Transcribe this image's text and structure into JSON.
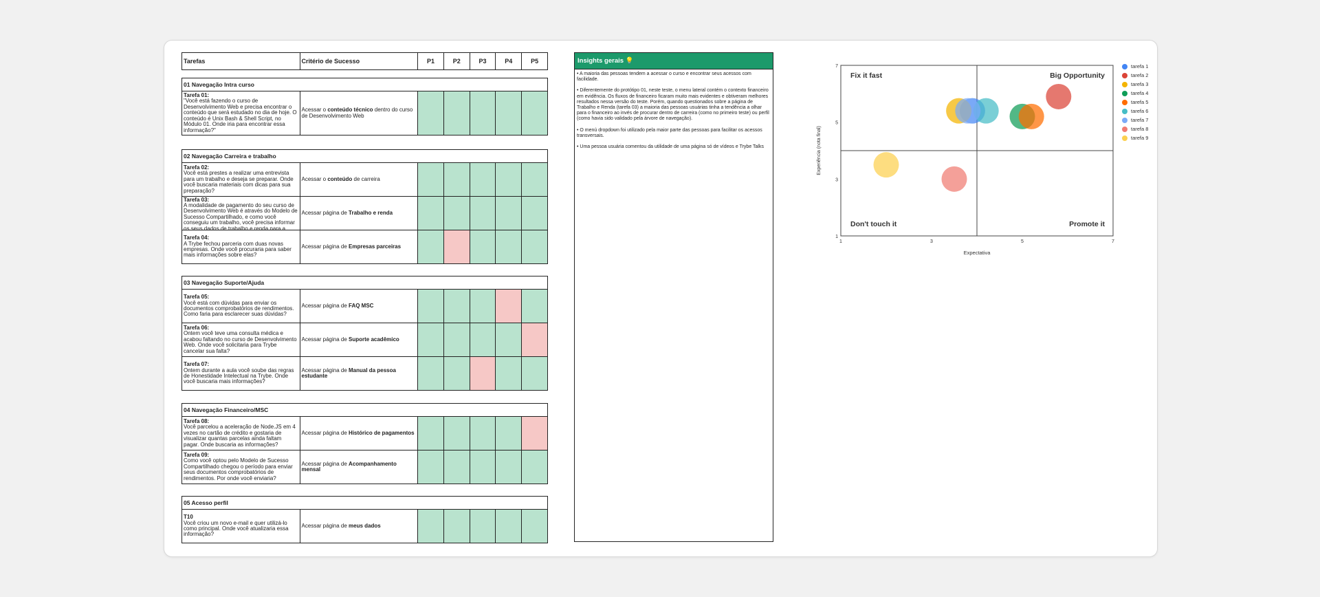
{
  "table": {
    "headers": [
      "Tarefas",
      "Critério de Sucesso",
      "P1",
      "P2",
      "P3",
      "P4",
      "P5"
    ],
    "sections": [
      {
        "title": "01 Navegação Intra curso",
        "rows": [
          {
            "task_title": "Tarefa 01:",
            "task_text": "\"Você está fazendo o curso de Desenvolvimento Web e precisa encontrar o conteúdo que será estudado no dia de hoje. O conteúdo é Unix Bash & Shell Script, no Módulo 01. Onde iria para encontrar essa informação?\"",
            "crit_pre": "Acessar o ",
            "crit_bold": "conteúdo técnico",
            "crit_post": " dentro do curso de Desenvolvimento Web",
            "results": [
              "success",
              "success",
              "success",
              "success",
              "success"
            ]
          }
        ]
      },
      {
        "title": "02 Navegação Carreira e trabalho",
        "rows": [
          {
            "task_title": "Tarefa 02:",
            "task_text": "Você está prestes a realizar uma entrevista para um trabalho e deseja se preparar. Onde você buscaria materiais com dicas para sua preparação?",
            "crit_pre": "Acessar o ",
            "crit_bold": "conteúdo",
            "crit_post": " de carreira",
            "results": [
              "success",
              "success",
              "success",
              "success",
              "success"
            ]
          },
          {
            "task_title": "Tarefa 03:",
            "task_text": "A modalidade de pagamento do seu curso de Desenvolvimento Web é através do Modelo de Sucesso Compartilhado, e como você conseguiu um trabalho, você precisa informar os seus dados de trabalho e renda para a",
            "crit_pre": "Acessar página de ",
            "crit_bold": "Trabalho e renda",
            "crit_post": "",
            "results": [
              "success",
              "success",
              "success",
              "success",
              "success"
            ]
          },
          {
            "task_title": "Tarefa 04:",
            "task_text": "A Trybe fechou parceria com duas novas empresas. Onde você procuraria para saber mais informações sobre elas?",
            "crit_pre": "Acessar página de ",
            "crit_bold": "Empresas parceiras",
            "crit_post": "",
            "results": [
              "success",
              "fail",
              "success",
              "success",
              "success"
            ]
          }
        ]
      },
      {
        "title": "03 Navegação Suporte/Ajuda",
        "rows": [
          {
            "task_title": "Tarefa 05:",
            "task_text": "Você está com dúvidas para enviar os documentos comprobatórios de rendimentos. Como faria para esclarecer suas dúvidas?",
            "crit_pre": "Acessar página de ",
            "crit_bold": "FAQ MSC",
            "crit_post": "",
            "results": [
              "success",
              "success",
              "success",
              "fail",
              "success"
            ]
          },
          {
            "task_title": "Tarefa 06:",
            "task_text": "Ontem você teve uma consulta médica e acabou faltando no curso de Desenvolvimento Web. Onde você solicitaria para Trybe cancelar sua falta?",
            "crit_pre": "Acessar página de ",
            "crit_bold": "Suporte acadêmico",
            "crit_post": "",
            "results": [
              "success",
              "success",
              "success",
              "success",
              "fail"
            ]
          },
          {
            "task_title": "Tarefa 07:",
            "task_text": "Ontem durante a aula você soube das regras de Honestidade Intelectual na Trybe. Onde você buscaria mais informações?",
            "crit_pre": "Acessar página de ",
            "crit_bold": "Manual da pessoa estudante",
            "crit_post": "",
            "results": [
              "success",
              "success",
              "fail",
              "success",
              "success"
            ]
          }
        ]
      },
      {
        "title": "04 Navegação Financeiro/MSC",
        "rows": [
          {
            "task_title": "Tarefa 08:",
            "task_text": "Você parcelou a aceleração de Node.JS em 4 vezes no cartão de crédito e gostaria de visualizar quantas parcelas ainda faltam pagar. Onde buscaria as informações?",
            "crit_pre": "Acessar página de ",
            "crit_bold": "Histórico de pagamentos",
            "crit_post": "",
            "results": [
              "success",
              "success",
              "success",
              "success",
              "fail"
            ]
          },
          {
            "task_title": "Tarefa 09:",
            "task_text": "Como você optou pelo Modelo de Sucesso Compartilhado chegou o período para enviar seus documentos comprobatórios de rendimentos. Por onde você enviaria?",
            "crit_pre": "Acessar página de ",
            "crit_bold": "Acompanhamento mensal",
            "crit_post": "",
            "results": [
              "success",
              "success",
              "success",
              "success",
              "success"
            ]
          }
        ]
      },
      {
        "title": "05 Acesso perfil",
        "rows": [
          {
            "task_title": "T10",
            "task_text": "Você criou um novo e-mail e quer utilizá-lo como principal. Onde você atualizaria essa informação?",
            "crit_pre": "Acessar página de ",
            "crit_bold": "meus dados",
            "crit_post": "",
            "results": [
              "success",
              "success",
              "success",
              "success",
              "success"
            ]
          }
        ]
      }
    ],
    "colors": {
      "success": "#b9e3ce",
      "fail": "#f6c8c6"
    }
  },
  "insights": {
    "title": "Insights gerais 💡",
    "items": [
      "• A maioria das pessoas tendem a acessar o curso e encontrar seus acessos com facilidade.",
      "• Diferentemente do protótipo 01, neste teste, o menu lateral contém o contexto financeiro em evidência. Os fluxos de financeiro ficaram muito mais evidentes e obtiveram melhores resultados nessa versão do teste. Porém, quando questionados sobre a página de Trabalho e Renda (tarefa 03) a maioria das pessoas usuárias tinha a tendência a olhar para o financeiro ao invés de procurar dentro de carreira (como no primeiro teste) ou perfil (como havia sido validado pela árvore de navegação).",
      "• O menú dropdown foi utilizado pela maior parte das pessoas para facilitar os acessos transversais.",
      "• Uma pessoa usuária comentou da utilidade de uma página só de vídeos e Trybe Talks"
    ]
  },
  "chart_data": {
    "type": "scatter",
    "xlabel": "Expectativa",
    "ylabel": "Experiência (nota final)",
    "xlim": [
      1,
      7
    ],
    "ylim": [
      1,
      7
    ],
    "xticks": [
      1,
      3,
      5,
      7
    ],
    "yticks": [
      1,
      3,
      5,
      7
    ],
    "quadrant_split": {
      "x": 4,
      "y": 4
    },
    "quadrants": [
      "Fix it fast",
      "Big Opportunity",
      "Don't touch it",
      "Promote it"
    ],
    "series": [
      {
        "name": "tarefa 1",
        "color": "#4285f4",
        "x": 3.9,
        "y": 5.4
      },
      {
        "name": "tarefa 2",
        "color": "#db4437",
        "x": 5.8,
        "y": 5.9
      },
      {
        "name": "tarefa 3",
        "color": "#f4b400",
        "x": 3.6,
        "y": 5.4
      },
      {
        "name": "tarefa 4",
        "color": "#0f9d58",
        "x": 5.0,
        "y": 5.2
      },
      {
        "name": "tarefa 5",
        "color": "#ff6d00",
        "x": 5.2,
        "y": 5.2
      },
      {
        "name": "tarefa 6",
        "color": "#46bdc6",
        "x": 4.2,
        "y": 5.4
      },
      {
        "name": "tarefa 7",
        "color": "#7baaf7",
        "x": 3.8,
        "y": 5.4
      },
      {
        "name": "tarefa 8",
        "color": "#f07b72",
        "x": 3.5,
        "y": 3.0
      },
      {
        "name": "tarefa 9",
        "color": "#fcd04f",
        "x": 2.0,
        "y": 3.5
      }
    ]
  }
}
